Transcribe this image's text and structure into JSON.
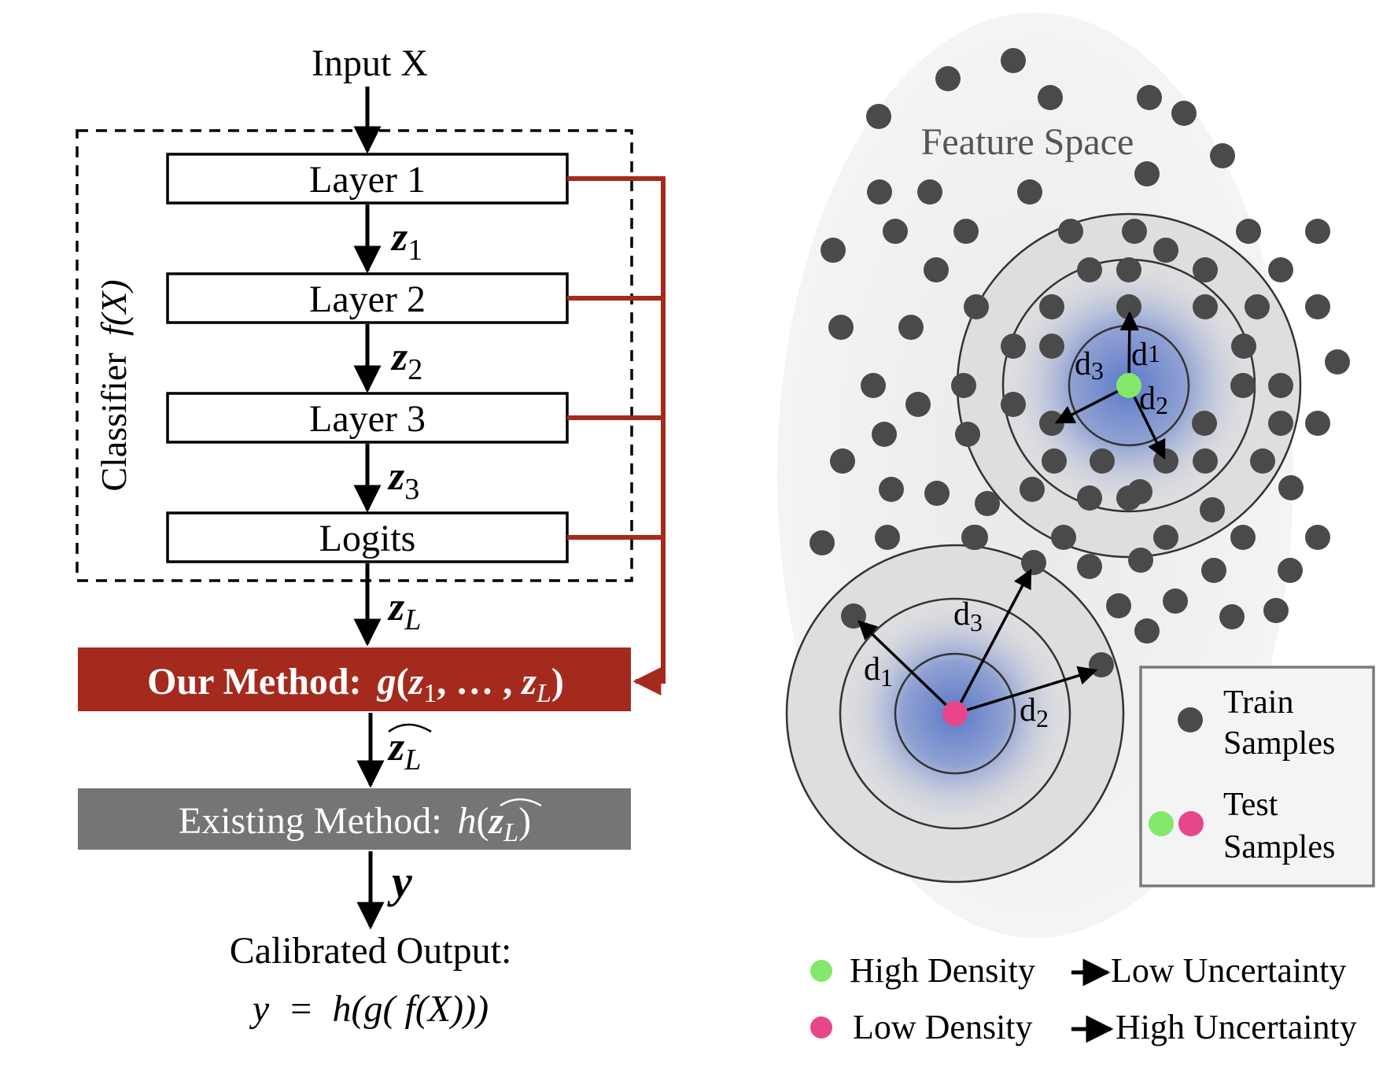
{
  "flow": {
    "input": "Input X",
    "classifier_label": "Classifier",
    "classifier_fn": "f(X)",
    "layers": [
      "Layer 1",
      "Layer 2",
      "Layer 3",
      "Logits"
    ],
    "edge_vars": [
      {
        "sym": "z",
        "sub": "1"
      },
      {
        "sym": "z",
        "sub": "2"
      },
      {
        "sym": "z",
        "sub": "3"
      },
      {
        "sym": "z",
        "sub": "L"
      }
    ],
    "our_method_label": "Our Method:",
    "our_method_fn": "g",
    "our_method_args": [
      "z",
      "1",
      ", … , ",
      "z",
      "L"
    ],
    "zhat_sym": "z",
    "zhat_sub": "L",
    "existing_method_label": "Existing Method:",
    "existing_method_fn": "h",
    "y_var": "y",
    "calibrated_output": "Calibrated Output:",
    "formula": "y  =  h(g( f(X)))"
  },
  "feature_space": {
    "title": "Feature Space",
    "dist_labels_high": [
      {
        "sym": "d",
        "sub": "1"
      },
      {
        "sym": "d",
        "sub": "2"
      },
      {
        "sym": "d",
        "sub": "3"
      }
    ],
    "dist_labels_low": [
      {
        "sym": "d",
        "sub": "1"
      },
      {
        "sym": "d",
        "sub": "2"
      },
      {
        "sym": "d",
        "sub": "3"
      }
    ],
    "legend": {
      "train_line1": "Train",
      "train_line2": "Samples",
      "test_line1": "Test",
      "test_line2": "Samples"
    },
    "bottom_legend": [
      {
        "left": "High Density",
        "right": "Low Uncertainty",
        "color": "#84e86a"
      },
      {
        "left": "Low Density",
        "right": "High Uncertainty",
        "color": "#e8468a"
      }
    ]
  },
  "colors": {
    "red": "#a52a1e",
    "grey_box": "#757575",
    "dot": "#4a4a4a",
    "green": "#84e86a",
    "pink": "#e8468a",
    "blue_glow": "#5b78c8"
  }
}
